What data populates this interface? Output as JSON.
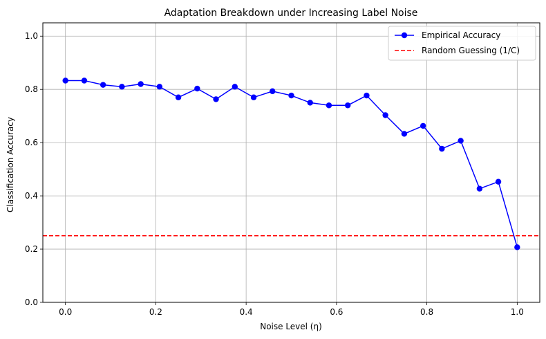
{
  "chart_data": {
    "type": "line",
    "title": "Adaptation Breakdown under Increasing Label Noise",
    "xlabel": "Noise Level (η)",
    "ylabel": "Classification Accuracy",
    "xlim": [
      -0.05,
      1.05
    ],
    "ylim": [
      0.0,
      1.05
    ],
    "xticks": [
      0.0,
      0.2,
      0.4,
      0.6,
      0.8,
      1.0
    ],
    "xtick_labels": [
      "0.0",
      "0.2",
      "0.4",
      "0.6",
      "0.8",
      "1.0"
    ],
    "yticks": [
      0.0,
      0.2,
      0.4,
      0.6,
      0.8,
      1.0
    ],
    "ytick_labels": [
      "0.0",
      "0.2",
      "0.4",
      "0.6",
      "0.8",
      "1.0"
    ],
    "grid": true,
    "legend_position": "top-right",
    "series": [
      {
        "name": "Empirical Accuracy",
        "color": "#0000ff",
        "style": "solid-with-markers",
        "x": [
          0.0,
          0.0417,
          0.0833,
          0.125,
          0.1667,
          0.2083,
          0.25,
          0.2917,
          0.3333,
          0.375,
          0.4167,
          0.4583,
          0.5,
          0.5417,
          0.5833,
          0.625,
          0.6667,
          0.7083,
          0.75,
          0.7917,
          0.8333,
          0.875,
          0.9167,
          0.9583,
          1.0
        ],
        "y": [
          0.833,
          0.833,
          0.817,
          0.81,
          0.82,
          0.81,
          0.77,
          0.803,
          0.763,
          0.81,
          0.77,
          0.793,
          0.777,
          0.75,
          0.74,
          0.74,
          0.777,
          0.703,
          0.633,
          0.663,
          0.577,
          0.607,
          0.427,
          0.453,
          0.207
        ]
      }
    ],
    "reference_lines": [
      {
        "name": "Random Guessing (1/C)",
        "color": "#ff0000",
        "style": "dashed",
        "y": 0.25
      }
    ]
  }
}
